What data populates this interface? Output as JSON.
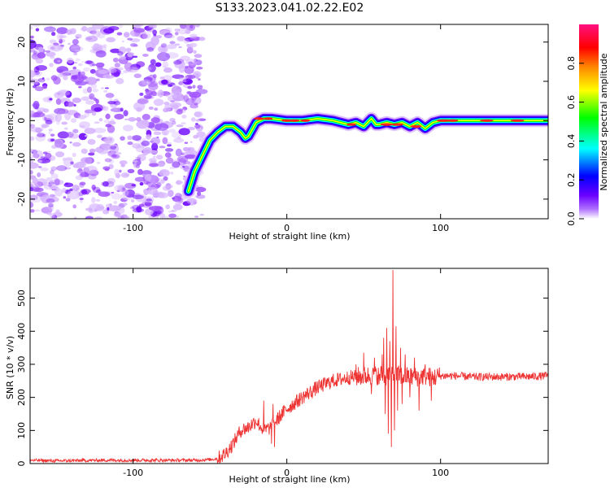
{
  "figure_title": "S133.2023.041.02.22.E02",
  "chart_data": [
    {
      "type": "heatmap",
      "xlabel": "Height of straight line (km)",
      "ylabel": "Frequency (Hz)",
      "xlim": [
        -167,
        170
      ],
      "ylim": [
        -25,
        24.5
      ],
      "xticks": [
        -100,
        0,
        100
      ],
      "yticks": [
        -20,
        -10,
        0,
        10,
        20
      ],
      "colorbar": {
        "label": "Normalized spectral amplitude",
        "range": [
          0,
          1
        ],
        "ticks": [
          0.0,
          0.2,
          0.4,
          0.6,
          0.8
        ],
        "tick_labels": [
          "0.0",
          "0.2",
          "0.4",
          "0.6",
          "0.8"
        ],
        "colors": [
          "#ffffff",
          "#b070ff",
          "#6a00ff",
          "#0000ff",
          "#00ffff",
          "#00ff00",
          "#ffff00",
          "#ff8800",
          "#ff0000",
          "#ff1080"
        ]
      },
      "ridge": {
        "x": [
          -64,
          -60,
          -55,
          -50,
          -45,
          -40,
          -35,
          -30,
          -27,
          -25,
          -20,
          -15,
          -10,
          0,
          10,
          20,
          30,
          40,
          45,
          50,
          55,
          58,
          60,
          65,
          70,
          75,
          80,
          85,
          90,
          95,
          100,
          120,
          140,
          160,
          170
        ],
        "y": [
          -18,
          -13,
          -9,
          -5,
          -3,
          -1.5,
          -1.5,
          -3,
          -4.5,
          -4,
          -0.5,
          0.5,
          0.5,
          0,
          0,
          0.5,
          0,
          -1,
          -0.5,
          -1.5,
          0.5,
          -1,
          -1,
          -0.5,
          -1,
          -0.5,
          -1.5,
          -0.5,
          -2,
          -0.5,
          0,
          0,
          0,
          0,
          0
        ]
      },
      "noise_region_x": [
        -167,
        -55
      ]
    },
    {
      "type": "line",
      "xlabel": "Height of straight line (km)",
      "ylabel": "SNR (10 * v/v)",
      "xlim": [
        -167,
        170
      ],
      "ylim": [
        0,
        590
      ],
      "xticks": [
        -100,
        0,
        100
      ],
      "yticks": [
        0,
        100,
        200,
        300,
        400,
        500
      ],
      "color": "#ee3333",
      "series": [
        {
          "x": [
            -167,
            -150,
            -120,
            -100,
            -80,
            -60,
            -50,
            -45,
            -40,
            -35,
            -30,
            -25,
            -20,
            -15,
            -10,
            -5,
            0,
            10,
            20,
            30,
            40,
            45,
            50,
            55,
            60,
            62,
            64,
            66,
            68,
            69,
            70,
            72,
            75,
            80,
            85,
            90,
            95,
            100,
            110,
            120,
            140,
            160,
            170
          ],
          "y": [
            10,
            8,
            10,
            10,
            10,
            10,
            12,
            15,
            30,
            60,
            100,
            110,
            130,
            100,
            110,
            140,
            165,
            200,
            230,
            250,
            260,
            262,
            265,
            265,
            268,
            270,
            260,
            272,
            268,
            270,
            265,
            268,
            265,
            262,
            262,
            265,
            260,
            265,
            265,
            262,
            262,
            263,
            265
          ]
        }
      ],
      "spikes": [
        {
          "x": 45,
          "y": 300
        },
        {
          "x": 50,
          "y": 335
        },
        {
          "x": 55,
          "y": 210
        },
        {
          "x": 57,
          "y": 320
        },
        {
          "x": 60,
          "y": 240
        },
        {
          "x": 62,
          "y": 330
        },
        {
          "x": 63,
          "y": 380
        },
        {
          "x": 64,
          "y": 150
        },
        {
          "x": 65,
          "y": 410
        },
        {
          "x": 66,
          "y": 90
        },
        {
          "x": 67,
          "y": 370
        },
        {
          "x": 68,
          "y": 50
        },
        {
          "x": 69,
          "y": 585
        },
        {
          "x": 70,
          "y": 100
        },
        {
          "x": 71,
          "y": 415
        },
        {
          "x": 72,
          "y": 160
        },
        {
          "x": 74,
          "y": 350
        },
        {
          "x": 75,
          "y": 180
        },
        {
          "x": 77,
          "y": 330
        },
        {
          "x": 80,
          "y": 200
        },
        {
          "x": 83,
          "y": 320
        },
        {
          "x": 86,
          "y": 160
        },
        {
          "x": 90,
          "y": 300
        },
        {
          "x": 94,
          "y": 190
        },
        {
          "x": -15,
          "y": 190
        },
        {
          "x": -10,
          "y": 60
        },
        {
          "x": -9,
          "y": 180
        },
        {
          "x": -8,
          "y": 50
        }
      ]
    }
  ]
}
